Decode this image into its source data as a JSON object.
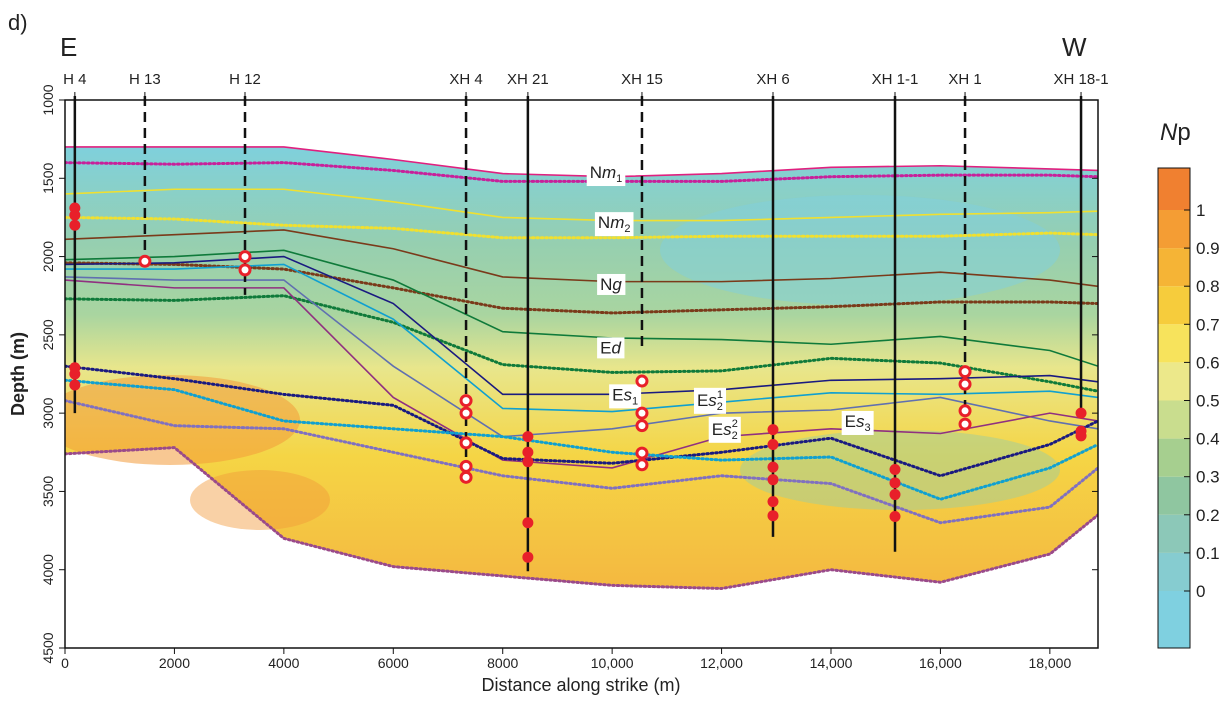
{
  "panel_label": "d)",
  "chart_data": {
    "type": "section",
    "left_label": "E",
    "right_label": "W",
    "xlabel": "Distance along strike (m)",
    "ylabel": "Depth (m)",
    "xlim": [
      0,
      18880
    ],
    "ylim": [
      1000,
      4500
    ],
    "xticks": [
      0,
      2000,
      4000,
      6000,
      8000,
      {
        "value": 10000,
        "label": "10,000"
      },
      {
        "value": 12000,
        "label": "12,000"
      },
      {
        "value": 14000,
        "label": "14,000"
      },
      {
        "value": 16000,
        "label": "16,000"
      },
      {
        "value": 18000,
        "label": "18,000"
      }
    ],
    "yticks": [
      1000,
      1500,
      2000,
      2500,
      3000,
      3500,
      4000,
      4500
    ],
    "wells": [
      {
        "name": "H 4",
        "x": 180,
        "bottom": 3000,
        "dashed": false,
        "samples": [
          {
            "depth": 1690,
            "filled": true
          },
          {
            "depth": 1735,
            "filled": true
          },
          {
            "depth": 1800,
            "filled": true
          },
          {
            "depth": 2710,
            "filled": true
          },
          {
            "depth": 2750,
            "filled": true
          },
          {
            "depth": 2820,
            "filled": true
          }
        ]
      },
      {
        "name": "H 13",
        "x": 1460,
        "bottom": 2070,
        "dashed": true,
        "samples": [
          {
            "depth": 2030,
            "filled": false
          }
        ]
      },
      {
        "name": "H 12",
        "x": 3290,
        "bottom": 2245,
        "dashed": true,
        "samples": [
          {
            "depth": 2000,
            "filled": false
          },
          {
            "depth": 2085,
            "filled": false
          }
        ]
      },
      {
        "name": "XH 4",
        "x": 7330,
        "bottom": 3280,
        "dashed": true,
        "samples": [
          {
            "depth": 2920,
            "filled": false
          },
          {
            "depth": 3000,
            "filled": false
          },
          {
            "depth": 3190,
            "filled": false
          },
          {
            "depth": 3340,
            "filled": false
          },
          {
            "depth": 3410,
            "filled": false
          }
        ]
      },
      {
        "name": "XH 21",
        "x": 8460,
        "bottom": 4010,
        "dashed": false,
        "samples": [
          {
            "depth": 3150,
            "filled": true
          },
          {
            "depth": 3250,
            "filled": true
          },
          {
            "depth": 3310,
            "filled": true
          },
          {
            "depth": 3700,
            "filled": true
          },
          {
            "depth": 3920,
            "filled": true
          }
        ]
      },
      {
        "name": "XH 15",
        "x": 10545,
        "bottom": 2600,
        "dashed": true,
        "samples": [
          {
            "depth": 2795,
            "filled": false
          },
          {
            "depth": 3000,
            "filled": false
          },
          {
            "depth": 3080,
            "filled": false
          },
          {
            "depth": 3255,
            "filled": false
          },
          {
            "depth": 3330,
            "filled": false
          }
        ]
      },
      {
        "name": "XH 6",
        "x": 12940,
        "bottom": 3790,
        "dashed": false,
        "samples": [
          {
            "depth": 3105,
            "filled": true
          },
          {
            "depth": 3200,
            "filled": true
          },
          {
            "depth": 3345,
            "filled": true
          },
          {
            "depth": 3425,
            "filled": true
          },
          {
            "depth": 3565,
            "filled": true
          },
          {
            "depth": 3655,
            "filled": true
          }
        ]
      },
      {
        "name": "XH 1-1",
        "x": 15170,
        "bottom": 3885,
        "dashed": false,
        "samples": [
          {
            "depth": 3360,
            "filled": true
          },
          {
            "depth": 3445,
            "filled": true
          },
          {
            "depth": 3520,
            "filled": true
          },
          {
            "depth": 3660,
            "filled": true
          }
        ]
      },
      {
        "name": "XH 1",
        "x": 16450,
        "bottom": 2965,
        "dashed": true,
        "samples": [
          {
            "depth": 2735,
            "filled": false
          },
          {
            "depth": 2815,
            "filled": false
          },
          {
            "depth": 2985,
            "filled": false
          },
          {
            "depth": 3070,
            "filled": false
          }
        ]
      },
      {
        "name": "XH 18-1",
        "x": 18570,
        "bottom": 3010,
        "dashed": false,
        "samples": [
          {
            "depth": 3000,
            "filled": true
          },
          {
            "depth": 3115,
            "filled": true
          },
          {
            "depth": 3145,
            "filled": true
          }
        ]
      }
    ],
    "horizons": {
      "x": [
        0,
        2000,
        4000,
        6000,
        8000,
        10000,
        12000,
        14000,
        16000,
        18000,
        18880
      ],
      "lines": [
        {
          "color": "#e0207f",
          "dotted": false,
          "values": [
            1300,
            1300,
            1300,
            1380,
            1470,
            1490,
            1470,
            1430,
            1420,
            1440,
            1450
          ]
        },
        {
          "color": "#c8209a",
          "dotted": true,
          "values": [
            1400,
            1410,
            1400,
            1450,
            1520,
            1520,
            1520,
            1490,
            1480,
            1480,
            1490
          ]
        },
        {
          "color": "#f0e030",
          "dotted": false,
          "values": [
            1600,
            1570,
            1570,
            1650,
            1750,
            1770,
            1770,
            1750,
            1730,
            1720,
            1710
          ]
        },
        {
          "color": "#f0e030",
          "dotted": true,
          "values": [
            1750,
            1760,
            1800,
            1820,
            1880,
            1880,
            1870,
            1870,
            1870,
            1850,
            1860
          ]
        },
        {
          "color": "#7a3a1a",
          "dotted": false,
          "values": [
            1890,
            1860,
            1830,
            1950,
            2130,
            2160,
            2160,
            2140,
            2100,
            2150,
            2190
          ]
        },
        {
          "color": "#7a3a1a",
          "dotted": true,
          "values": [
            2040,
            2050,
            2080,
            2200,
            2330,
            2360,
            2340,
            2320,
            2290,
            2290,
            2300
          ]
        },
        {
          "color": "#0f7a3a",
          "dotted": false,
          "values": [
            2020,
            2000,
            1960,
            2150,
            2480,
            2520,
            2530,
            2560,
            2510,
            2600,
            2700
          ]
        },
        {
          "color": "#0f7a3a",
          "dotted": true,
          "values": [
            2270,
            2280,
            2250,
            2420,
            2690,
            2740,
            2730,
            2650,
            2680,
            2800,
            2860
          ]
        },
        {
          "color": "#1a1a80",
          "dotted": false,
          "values": [
            2050,
            2040,
            2000,
            2300,
            2880,
            2880,
            2850,
            2790,
            2780,
            2760,
            2800
          ]
        },
        {
          "color": "#10a0d0",
          "dotted": false,
          "values": [
            2080,
            2080,
            2050,
            2400,
            2970,
            2990,
            2930,
            2870,
            2880,
            2860,
            2900
          ]
        },
        {
          "color": "#6070b0",
          "dotted": false,
          "values": [
            2130,
            2150,
            2150,
            2700,
            3150,
            3100,
            3000,
            2980,
            2900,
            3050,
            3100
          ]
        },
        {
          "color": "#903080",
          "dotted": false,
          "values": [
            2150,
            2200,
            2200,
            2900,
            3300,
            3350,
            3150,
            3100,
            3130,
            3000,
            3050
          ]
        },
        {
          "color": "#1a1a80",
          "dotted": true,
          "values": [
            2700,
            2780,
            2880,
            2950,
            3290,
            3320,
            3250,
            3160,
            3400,
            3200,
            3050
          ]
        },
        {
          "color": "#10a0d0",
          "dotted": true,
          "values": [
            2790,
            2850,
            3050,
            3100,
            3150,
            3250,
            3300,
            3280,
            3550,
            3350,
            3200
          ]
        },
        {
          "color": "#8070c0",
          "dotted": true,
          "values": [
            2920,
            3080,
            3100,
            3250,
            3400,
            3480,
            3400,
            3450,
            3700,
            3600,
            3350
          ]
        },
        {
          "color": "#9a4a8a",
          "dotted": true,
          "values": [
            3260,
            3220,
            3800,
            3980,
            4040,
            4100,
            4120,
            4000,
            4080,
            3900,
            3650
          ]
        }
      ]
    },
    "formations": [
      {
        "parts": [
          {
            "text": "N"
          },
          {
            "text": "m",
            "style": "italic"
          },
          {
            "text": "1",
            "style": "sub"
          }
        ]
      },
      {
        "parts": [
          {
            "text": "N"
          },
          {
            "text": "m",
            "style": "italic"
          },
          {
            "text": "2",
            "style": "sub"
          }
        ]
      },
      {
        "parts": [
          {
            "text": "N"
          },
          {
            "text": "g",
            "style": "italic"
          }
        ]
      },
      {
        "parts": [
          {
            "text": "E"
          },
          {
            "text": "d",
            "style": "italic"
          }
        ]
      },
      {
        "parts": [
          {
            "text": "E"
          },
          {
            "text": "s",
            "style": "italic"
          },
          {
            "text": "1",
            "style": "sub"
          }
        ]
      },
      {
        "parts": [
          {
            "text": "E"
          },
          {
            "text": "s",
            "style": "italic"
          },
          {
            "text": "2",
            "style": "sub"
          },
          {
            "text": "1",
            "style": "sup"
          }
        ]
      },
      {
        "parts": [
          {
            "text": "E"
          },
          {
            "text": "s",
            "style": "italic"
          },
          {
            "text": "2",
            "style": "sub"
          },
          {
            "text": "2",
            "style": "sup"
          }
        ]
      },
      {
        "parts": [
          {
            "text": "E"
          },
          {
            "text": "s",
            "style": "italic"
          },
          {
            "text": "3",
            "style": "sub"
          }
        ]
      }
    ],
    "marker_color": "#e8202a",
    "colorbar": {
      "label": [
        {
          "text": "N",
          "style": "italic"
        },
        {
          "text": "p"
        }
      ],
      "ticks": [
        0,
        0.1,
        0.2,
        0.3,
        0.4,
        0.5,
        0.6,
        0.7,
        0.8,
        0.9,
        1
      ],
      "colors": [
        "#7fd0e0",
        "#86ccd0",
        "#8cc8b8",
        "#8fc6a0",
        "#a6cf8f",
        "#c9dd8e",
        "#ece88a",
        "#f7e35c",
        "#f6cc3c",
        "#f5b436",
        "#f49d34",
        "#f08030"
      ]
    }
  }
}
